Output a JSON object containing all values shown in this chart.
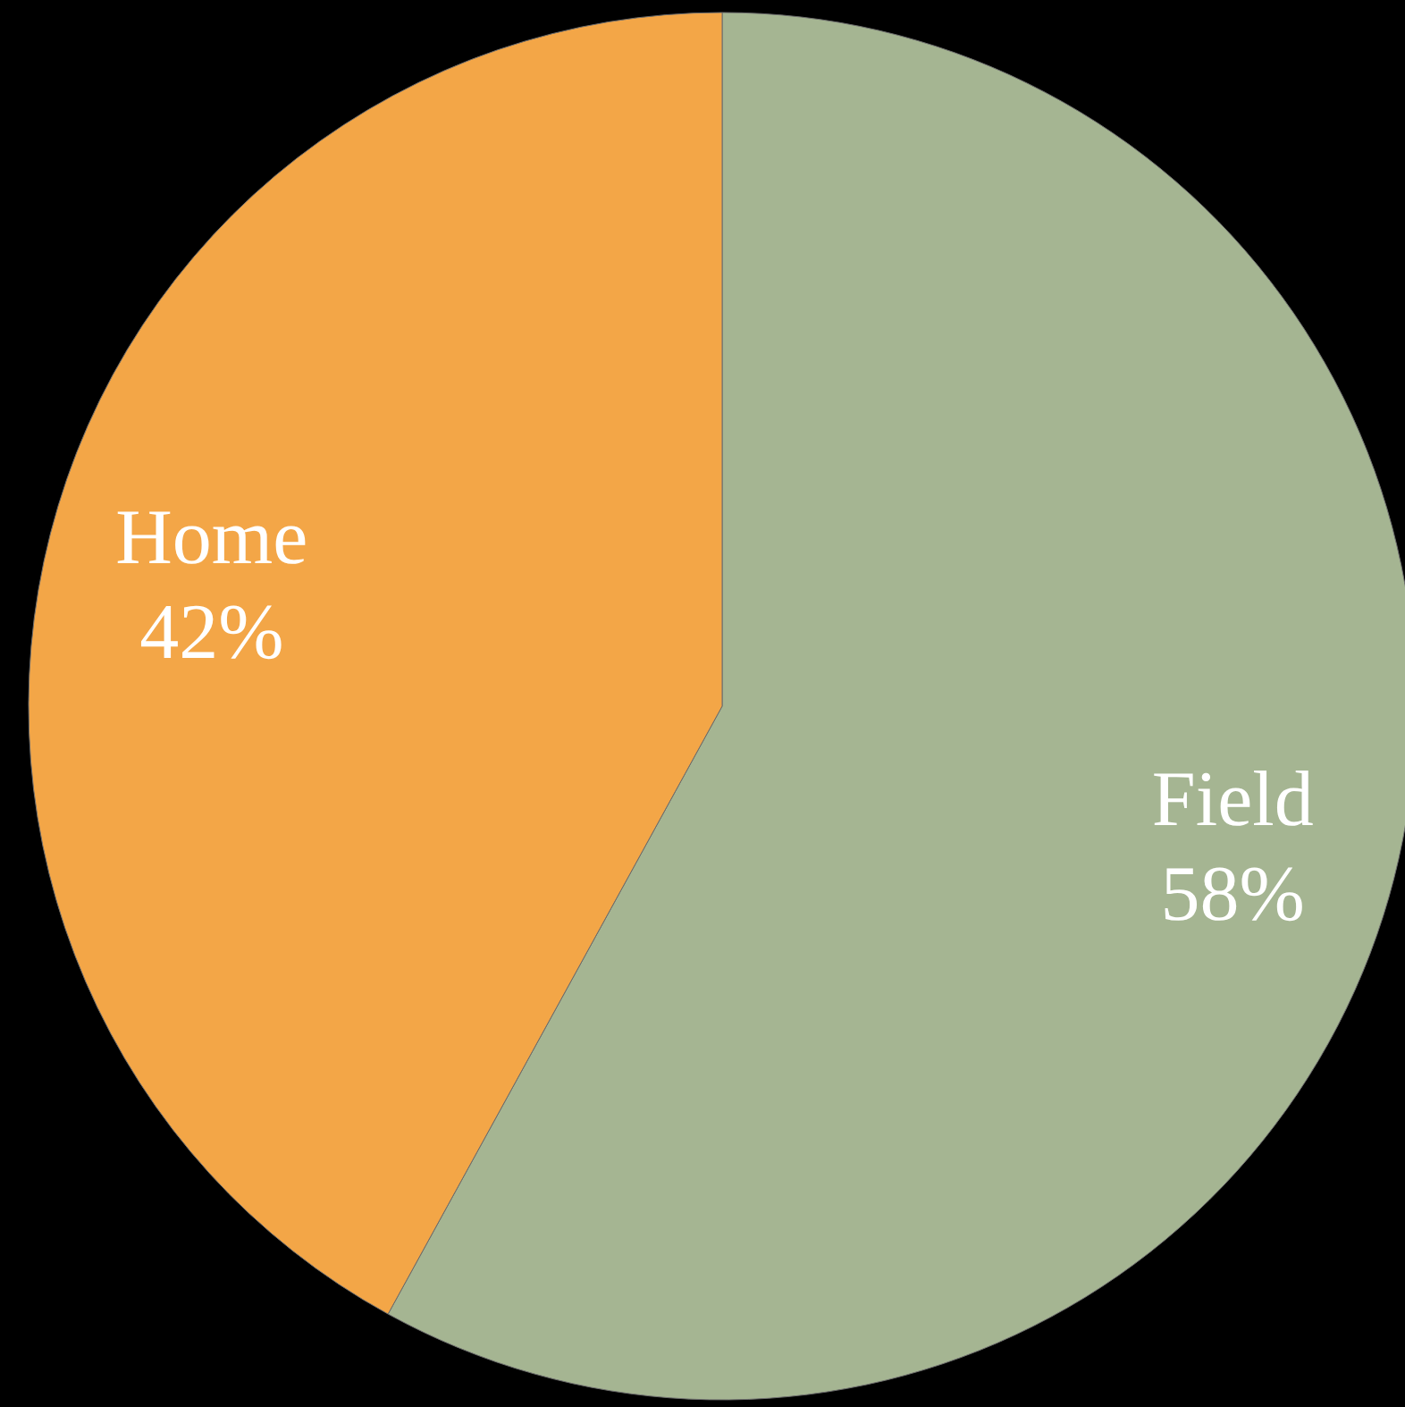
{
  "chart_data": {
    "type": "pie",
    "categories": [
      "Field",
      "Home"
    ],
    "values": [
      58,
      42
    ],
    "value_labels": [
      "58%",
      "42%"
    ],
    "colors": [
      "#a5b592",
      "#f3a647"
    ]
  }
}
